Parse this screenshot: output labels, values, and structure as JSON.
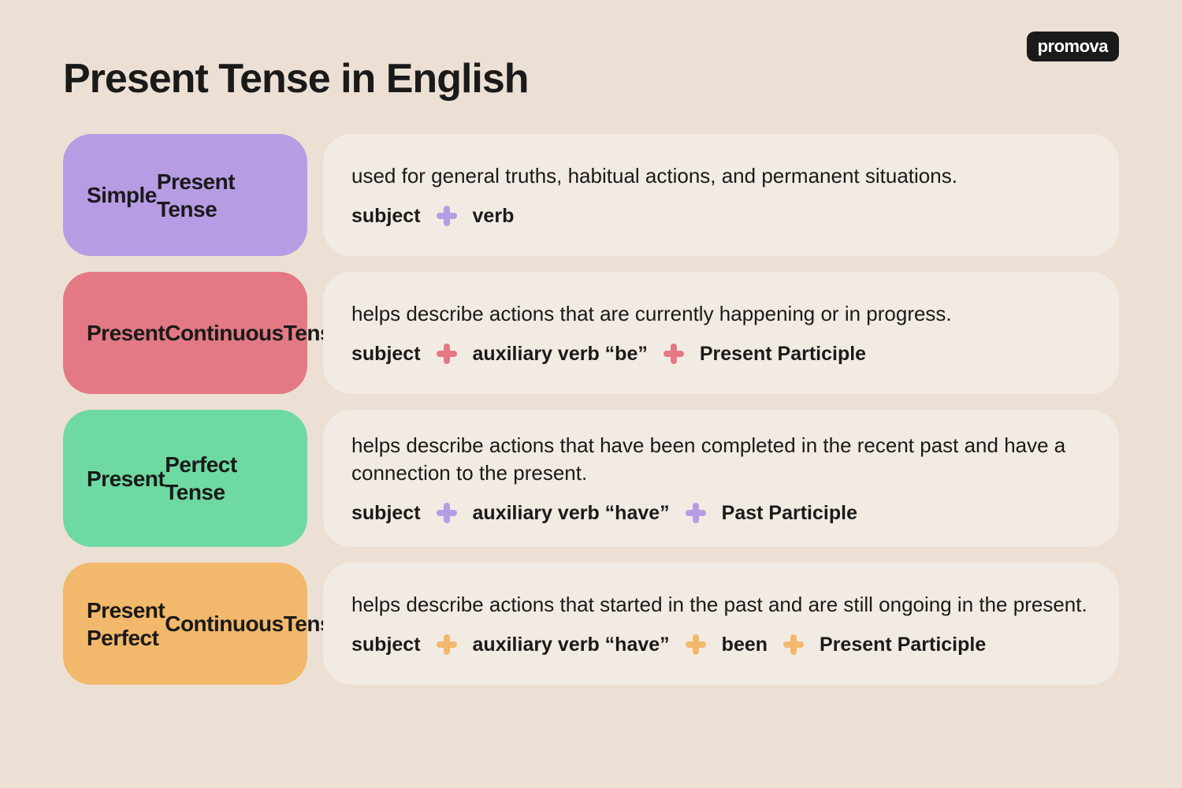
{
  "brand": "promova",
  "title": "Present Tense in English",
  "page_bg": "#ece0d4",
  "desc_bg": "#f2ebe3",
  "rows": [
    {
      "label": "Simple\nPresent Tense",
      "label_bg": "#b69ce3",
      "plus_color": "#b69ce3",
      "description": "used for general truths, habitual actions, and permanent situations.",
      "formula": [
        "subject",
        "verb"
      ]
    },
    {
      "label": "Present\nContinuous\nTense",
      "label_bg": "#e37984",
      "plus_color": "#e37984",
      "description": "helps describe actions that are currently happening or in progress.",
      "formula": [
        "subject",
        "auxiliary verb “be”",
        "Present Participle"
      ]
    },
    {
      "label": "Present\nPerfect Tense",
      "label_bg": "#6ed9a1",
      "plus_color": "#b69ce3",
      "description": "helps describe actions that have been completed in the recent past and have a connection to the present.",
      "formula": [
        "subject",
        "auxiliary verb “have”",
        "Past Participle"
      ]
    },
    {
      "label": "Present Perfect\nContinuous\nTense",
      "label_bg": "#f2b86b",
      "plus_color": "#f2b86b",
      "description": "helps describe actions that started in the past and are still ongoing in the present.",
      "formula": [
        "subject",
        "auxiliary verb “have”",
        "been",
        "Present Participle"
      ]
    }
  ]
}
